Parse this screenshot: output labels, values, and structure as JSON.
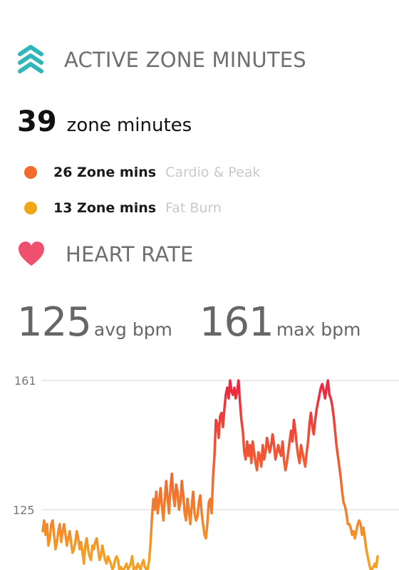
{
  "active_zone_minutes": {
    "title": "ACTIVE ZONE MINUTES",
    "icon": "chevrons-up-icon",
    "icon_color": "#2fb6b8",
    "total_value": "39",
    "total_unit": "zone minutes",
    "zones": [
      {
        "value": "26 Zone mins",
        "label": "Cardio & Peak",
        "color": "#f36b2a"
      },
      {
        "value": "13 Zone mins",
        "label": "Fat Burn",
        "color": "#f0a615"
      }
    ]
  },
  "heart_rate": {
    "title": "HEART RATE",
    "icon": "heart-icon",
    "icon_color": "#f0506e",
    "avg_value": "125",
    "avg_unit": "avg bpm",
    "max_value": "161",
    "max_unit": "max bpm"
  },
  "chart_data": {
    "type": "line",
    "title": "",
    "xlabel": "",
    "ylabel": "",
    "y_ticks": [
      "161",
      "125"
    ],
    "ylim": [
      110,
      161
    ],
    "x": [
      0,
      1,
      2,
      3,
      4,
      5,
      6,
      7,
      8,
      9,
      10,
      11,
      12,
      13,
      14,
      15,
      16,
      17,
      18,
      19,
      20,
      21,
      22,
      23,
      24,
      25,
      26,
      27,
      28,
      29,
      30,
      31,
      32,
      33,
      34,
      35,
      36,
      37,
      38,
      39,
      40,
      41,
      42,
      43,
      44,
      45,
      46,
      47,
      48,
      49,
      50,
      51,
      52,
      53,
      54,
      55,
      56,
      57,
      58,
      59,
      60,
      61,
      62,
      63,
      64,
      65,
      66,
      67,
      68,
      69,
      70,
      71,
      72,
      73,
      74,
      75,
      76,
      77,
      78,
      79,
      80,
      81,
      82,
      83,
      84,
      85,
      86,
      87,
      88,
      89,
      90,
      91,
      92,
      93,
      94,
      95,
      96,
      97,
      98,
      99,
      100,
      101,
      102,
      103,
      104,
      105,
      106,
      107,
      108,
      109,
      110,
      111,
      112,
      113,
      114,
      115,
      116,
      117,
      118,
      119,
      120,
      121,
      122,
      123,
      124,
      125,
      126,
      127,
      128,
      129,
      130,
      131,
      132,
      133,
      134,
      135,
      136,
      137,
      138,
      139,
      140,
      141,
      142,
      143,
      144,
      145,
      146,
      147,
      148,
      149,
      150,
      151,
      152,
      153,
      154,
      155,
      156,
      157,
      158,
      159,
      160,
      161,
      162,
      163,
      164,
      165,
      166,
      167,
      168,
      169,
      170,
      171,
      172,
      173,
      174,
      175,
      176,
      177,
      178,
      179,
      180,
      181,
      182,
      183,
      184,
      185,
      186,
      187,
      188,
      189,
      190,
      191,
      192,
      193,
      194,
      195,
      196,
      197,
      198,
      199,
      200,
      201,
      202,
      203,
      204,
      205,
      206,
      207,
      208,
      209,
      210,
      211,
      212,
      213,
      214,
      215,
      216,
      217,
      218,
      219,
      220,
      221,
      222,
      223,
      224,
      225,
      226,
      227,
      228,
      229,
      230,
      231,
      232,
      233,
      234,
      235,
      236
    ],
    "series": [
      {
        "color_low": "#f5a024",
        "color_high": "#ec2a3f",
        "values": [
          119,
          122,
          118,
          121,
          115,
          117,
          121,
          122,
          118,
          114,
          116,
          119,
          121,
          116,
          119,
          121,
          118,
          115,
          117,
          119,
          116,
          113,
          114,
          116,
          119,
          117,
          114,
          116,
          113,
          110,
          115,
          117,
          114,
          112,
          111,
          115,
          114,
          116,
          117,
          114,
          111,
          112,
          115,
          113,
          111,
          110,
          112,
          111,
          110,
          108,
          109,
          111,
          112,
          111,
          108,
          109,
          108,
          107,
          109,
          110,
          108,
          109,
          110,
          112,
          108,
          109,
          107,
          110,
          109,
          108,
          110,
          111,
          109,
          107,
          104,
          111,
          116,
          123,
          128,
          125,
          130,
          124,
          127,
          131,
          126,
          122,
          128,
          133,
          128,
          124,
          131,
          135,
          129,
          126,
          132,
          130,
          125,
          127,
          133,
          129,
          124,
          122,
          128,
          125,
          121,
          126,
          130,
          124,
          122,
          123,
          127,
          129,
          124,
          121,
          118,
          117,
          121,
          127,
          128,
          124,
          134,
          140,
          150,
          149,
          145,
          151,
          152,
          148,
          153,
          157,
          159,
          156,
          161,
          158,
          157,
          159,
          156,
          158,
          161,
          155,
          150,
          147,
          141,
          139,
          144,
          140,
          143,
          138,
          144,
          141,
          138,
          136,
          141,
          140,
          137,
          143,
          139,
          141,
          145,
          143,
          141,
          143,
          146,
          143,
          139,
          141,
          143,
          141,
          140,
          144,
          139,
          136,
          138,
          141,
          144,
          147,
          144,
          150,
          147,
          143,
          140,
          138,
          143,
          141,
          139,
          137,
          141,
          144,
          149,
          152,
          148,
          146,
          150,
          153,
          155,
          157,
          159,
          160,
          158,
          156,
          159,
          161,
          157,
          156,
          154,
          151,
          147,
          143,
          140,
          137,
          134,
          130,
          127,
          126,
          124,
          121,
          121,
          120,
          118,
          119,
          117,
          119,
          121,
          122,
          121,
          118,
          120,
          117,
          114,
          112,
          110,
          108,
          107,
          109,
          110,
          109,
          112
        ]
      }
    ]
  }
}
